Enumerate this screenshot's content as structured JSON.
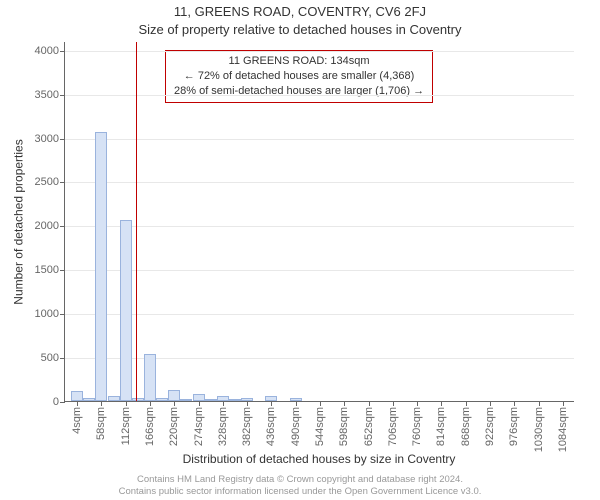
{
  "title_main": "11, GREENS ROAD, COVENTRY, CV6 2FJ",
  "title_sub": "Size of property relative to detached houses in Coventry",
  "y_axis_label": "Number of detached properties",
  "x_axis_label": "Distribution of detached houses by size in Coventry",
  "chart": {
    "type": "histogram",
    "background_color": "#ffffff",
    "grid_color": "#e8e8e8",
    "axis_color": "#666666",
    "bar_fill": "#d6e2f5",
    "bar_border": "#9ab3dd",
    "marker_color": "#c00000",
    "label_fontsize": 12,
    "tick_fontsize": 11,
    "ylim": [
      0,
      4100
    ],
    "y_ticks": [
      0,
      500,
      1000,
      1500,
      2000,
      2500,
      3000,
      3500,
      4000
    ],
    "xlim": [
      -23,
      1111
    ],
    "x_ticks": [
      4,
      58,
      112,
      166,
      220,
      274,
      328,
      382,
      436,
      490,
      544,
      598,
      652,
      706,
      760,
      814,
      868,
      922,
      976,
      1030,
      1084
    ],
    "x_tick_unit": "sqm",
    "bin_width": 27,
    "bins": [
      {
        "x": 4,
        "count": 110
      },
      {
        "x": 31,
        "count": 30
      },
      {
        "x": 58,
        "count": 3060
      },
      {
        "x": 85,
        "count": 60
      },
      {
        "x": 112,
        "count": 2060
      },
      {
        "x": 139,
        "count": 40
      },
      {
        "x": 166,
        "count": 540
      },
      {
        "x": 193,
        "count": 30
      },
      {
        "x": 220,
        "count": 130
      },
      {
        "x": 247,
        "count": 20
      },
      {
        "x": 274,
        "count": 80
      },
      {
        "x": 301,
        "count": 10
      },
      {
        "x": 328,
        "count": 60
      },
      {
        "x": 355,
        "count": 10
      },
      {
        "x": 382,
        "count": 40
      },
      {
        "x": 436,
        "count": 60
      },
      {
        "x": 490,
        "count": 40
      }
    ],
    "marker_value": 134
  },
  "callout": {
    "line1": "11 GREENS ROAD: 134sqm",
    "line2": "← 72% of detached houses are smaller (4,368)",
    "line3": "28% of semi-detached houses are larger (1,706) →"
  },
  "footer": {
    "line1": "Contains HM Land Registry data © Crown copyright and database right 2024.",
    "line2": "Contains public sector information licensed under the Open Government Licence v3.0."
  }
}
